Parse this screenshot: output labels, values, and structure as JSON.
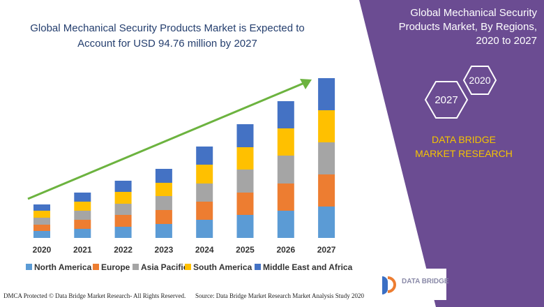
{
  "chart_data": {
    "type": "bar",
    "stacked": true,
    "title": "Global Mechanical Security Products Market is Expected to Account for USD 94.76 million by 2027",
    "categories": [
      "2020",
      "2021",
      "2022",
      "2023",
      "2024",
      "2025",
      "2026",
      "2027"
    ],
    "series": [
      {
        "name": "North America",
        "color": "#5b9bd5",
        "values": [
          10,
          13,
          16,
          20,
          26,
          33,
          39,
          45
        ]
      },
      {
        "name": "Europe",
        "color": "#ed7d31",
        "values": [
          9,
          13,
          17,
          20,
          26,
          32,
          39,
          46
        ]
      },
      {
        "name": "Asia Pacific",
        "color": "#a5a5a5",
        "values": [
          10,
          13,
          16,
          20,
          26,
          33,
          40,
          46
        ]
      },
      {
        "name": "South America",
        "color": "#ffc000",
        "values": [
          10,
          13,
          17,
          19,
          27,
          32,
          39,
          46
        ]
      },
      {
        "name": "Middle East and Africa",
        "color": "#4472c4",
        "values": [
          9,
          13,
          16,
          20,
          26,
          33,
          39,
          46
        ]
      }
    ]
  },
  "panel": {
    "title": "Global Mechanical Security Products Market, By Regions, 2020 to 2027",
    "badges": [
      "2020",
      "2027"
    ],
    "brand": "DATA BRIDGE MARKET RESEARCH"
  },
  "logo": "DATA BRIDGE",
  "footer": {
    "left": "DMCA Protected © Data Bridge Market Research- All Rights Reserved.",
    "right": "Source: Data Bridge Market Research Market Analysis Study 2020"
  }
}
